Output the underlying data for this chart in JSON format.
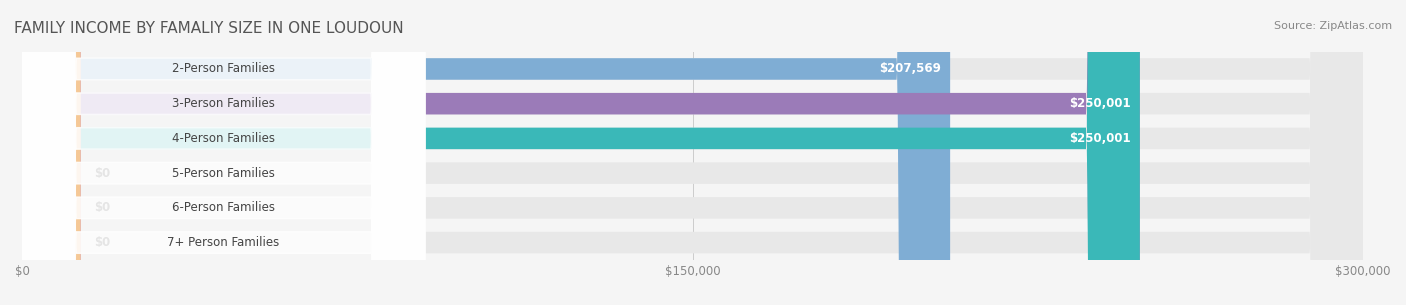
{
  "title": "FAMILY INCOME BY FAMALIY SIZE IN ONE LOUDOUN",
  "source": "Source: ZipAtlas.com",
  "categories": [
    "2-Person Families",
    "3-Person Families",
    "4-Person Families",
    "5-Person Families",
    "6-Person Families",
    "7+ Person Families"
  ],
  "values": [
    207569,
    250001,
    250001,
    0,
    0,
    0
  ],
  "bar_colors": [
    "#7fadd4",
    "#9b7bb8",
    "#3ab8b8",
    "#9b9bdb",
    "#f0a0b0",
    "#f5c896"
  ],
  "label_colors": [
    "#7fadd4",
    "#9b7bb8",
    "#3ab8b8",
    "#9b9bdb",
    "#f0a0b0",
    "#f5c896"
  ],
  "value_labels": [
    "$207,569",
    "$250,001",
    "$250,001",
    "$0",
    "$0",
    "$0"
  ],
  "xlim": [
    0,
    300000
  ],
  "xtick_values": [
    0,
    150000,
    300000
  ],
  "xtick_labels": [
    "$0",
    "$150,000",
    "$300,000"
  ],
  "background_color": "#f5f5f5",
  "bar_background_color": "#e8e8e8",
  "title_fontsize": 11,
  "label_fontsize": 8.5,
  "value_fontsize": 8.5,
  "bar_height": 0.62,
  "figsize": [
    14.06,
    3.05
  ]
}
